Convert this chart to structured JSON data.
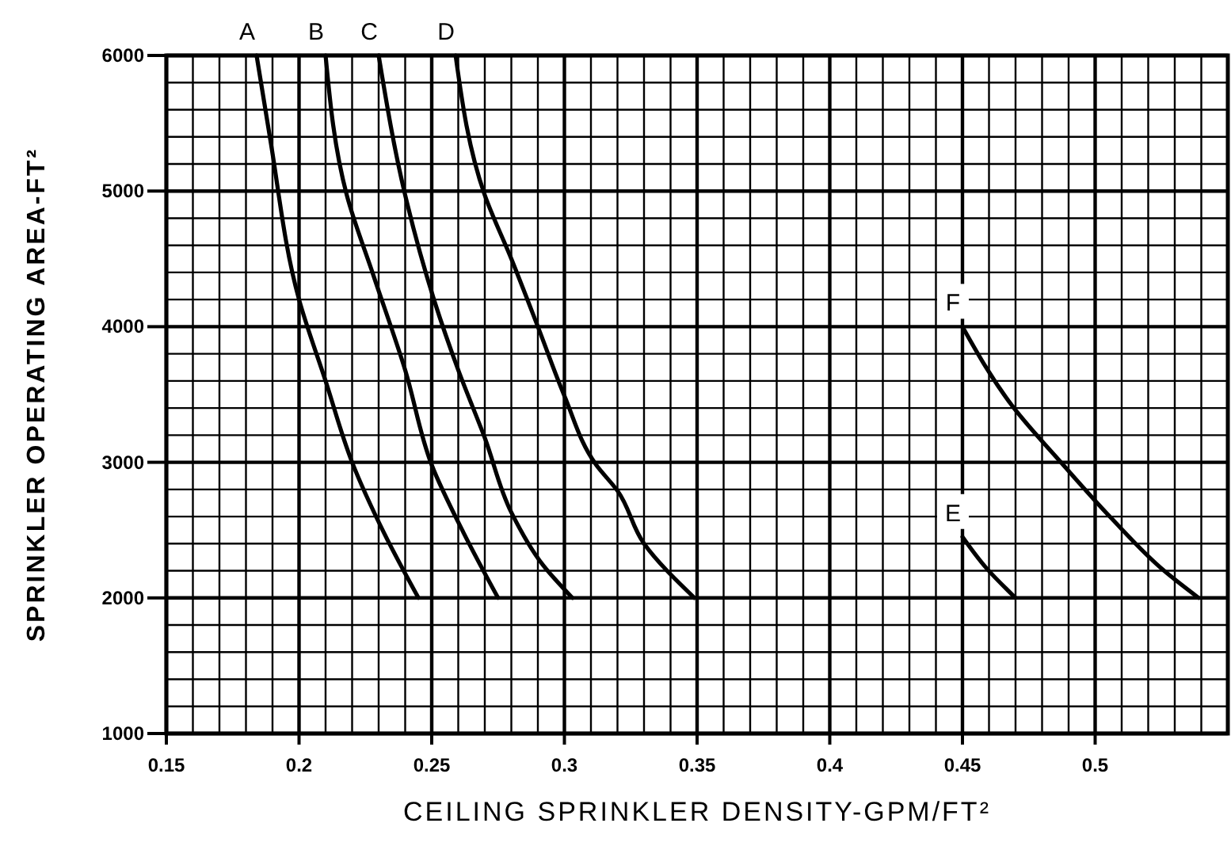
{
  "chart_data": {
    "type": "line",
    "xlabel": "CEILING SPRINKLER DENSITY-GPM/FT²",
    "ylabel": "SPRINKLER OPERATING AREA-FT²",
    "xlim": [
      0.15,
      0.55
    ],
    "ylim": [
      1000,
      6000
    ],
    "xticks": [
      0.15,
      {
        "value": 0.16,
        "label": null
      },
      {
        "value": 0.17,
        "label": null
      },
      {
        "value": 0.18,
        "label": null
      },
      {
        "value": 0.19,
        "label": null
      },
      0.2,
      {
        "value": 0.21,
        "label": null
      },
      {
        "value": 0.22,
        "label": null
      },
      {
        "value": 0.23,
        "label": null
      },
      {
        "value": 0.24,
        "label": null
      },
      0.25,
      {
        "value": 0.26,
        "label": null
      },
      {
        "value": 0.27,
        "label": null
      },
      {
        "value": 0.28,
        "label": null
      },
      {
        "value": 0.29,
        "label": null
      },
      0.3,
      {
        "value": 0.31,
        "label": null
      },
      {
        "value": 0.32,
        "label": null
      },
      {
        "value": 0.33,
        "label": null
      },
      {
        "value": 0.34,
        "label": null
      },
      0.35,
      {
        "value": 0.36,
        "label": null
      },
      {
        "value": 0.37,
        "label": null
      },
      {
        "value": 0.38,
        "label": null
      },
      {
        "value": 0.39,
        "label": null
      },
      0.4,
      {
        "value": 0.41,
        "label": null
      },
      {
        "value": 0.42,
        "label": null
      },
      {
        "value": 0.43,
        "label": null
      },
      {
        "value": 0.44,
        "label": null
      },
      0.45,
      {
        "value": 0.46,
        "label": null
      },
      {
        "value": 0.47,
        "label": null
      },
      {
        "value": 0.48,
        "label": null
      },
      {
        "value": 0.49,
        "label": null
      },
      0.5,
      {
        "value": 0.51,
        "label": null
      },
      {
        "value": 0.52,
        "label": null
      },
      {
        "value": 0.53,
        "label": null
      },
      {
        "value": 0.54,
        "label": null
      },
      {
        "value": 0.55,
        "label": null
      }
    ],
    "yticks": [
      1000,
      {
        "value": 1200,
        "label": null
      },
      {
        "value": 1400,
        "label": null
      },
      {
        "value": 1600,
        "label": null
      },
      {
        "value": 1800,
        "label": null
      },
      2000,
      {
        "value": 2200,
        "label": null
      },
      {
        "value": 2400,
        "label": null
      },
      {
        "value": 2600,
        "label": null
      },
      {
        "value": 2800,
        "label": null
      },
      3000,
      {
        "value": 3200,
        "label": null
      },
      {
        "value": 3400,
        "label": null
      },
      {
        "value": 3600,
        "label": null
      },
      {
        "value": 3800,
        "label": null
      },
      4000,
      {
        "value": 4200,
        "label": null
      },
      {
        "value": 4400,
        "label": null
      },
      {
        "value": 4600,
        "label": null
      },
      {
        "value": 4800,
        "label": null
      },
      5000,
      {
        "value": 5200,
        "label": null
      },
      {
        "value": 5400,
        "label": null
      },
      {
        "value": 5600,
        "label": null
      },
      {
        "value": 5800,
        "label": null
      },
      6000
    ],
    "grid": true,
    "marker": "none",
    "line_style": "solid",
    "series": [
      {
        "name": "A",
        "color": "#000000",
        "x": [
          0.184,
          0.189,
          0.2,
          0.21,
          0.22,
          0.232,
          0.245
        ],
        "values": [
          6000,
          5400,
          4200,
          3600,
          3000,
          2480,
          2000
        ]
      },
      {
        "name": "B",
        "color": "#000000",
        "x": [
          0.21,
          0.218,
          0.228,
          0.24,
          0.25,
          0.262,
          0.275
        ],
        "values": [
          6000,
          4970,
          4380,
          3680,
          2980,
          2480,
          2000
        ]
      },
      {
        "name": "C",
        "color": "#000000",
        "x": [
          0.23,
          0.24,
          0.251,
          0.26,
          0.27,
          0.28,
          0.292,
          0.303
        ],
        "values": [
          6000,
          4970,
          4190,
          3680,
          3180,
          2630,
          2240,
          2000
        ]
      },
      {
        "name": "D",
        "color": "#000000",
        "x": [
          0.259,
          0.27,
          0.28,
          0.29,
          0.3,
          0.312,
          0.32,
          0.33,
          0.349
        ],
        "values": [
          6000,
          4970,
          4500,
          4000,
          3490,
          2980,
          2790,
          2400,
          2000
        ]
      },
      {
        "name": "E",
        "color": "#000000",
        "x": [
          0.45,
          0.459,
          0.47
        ],
        "values": [
          2450,
          2220,
          2000
        ]
      },
      {
        "name": "F",
        "color": "#000000",
        "x": [
          0.45,
          0.469,
          0.488,
          0.506,
          0.526,
          0.539
        ],
        "values": [
          4000,
          3410,
          2980,
          2590,
          2200,
          2000
        ]
      }
    ]
  }
}
